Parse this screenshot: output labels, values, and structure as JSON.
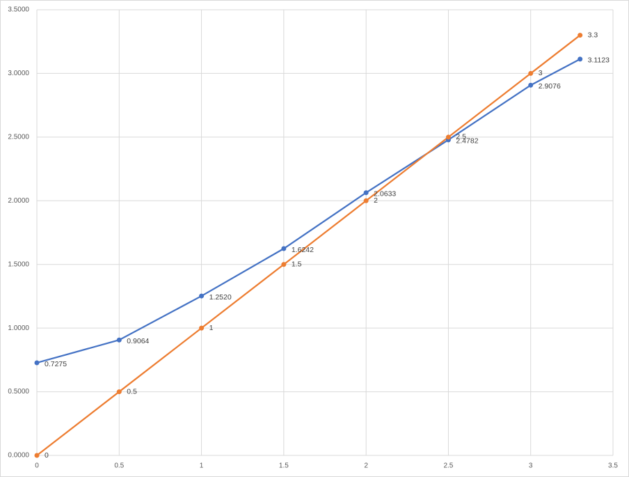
{
  "chart_data": {
    "type": "scatter-line",
    "x": [
      0,
      0.5,
      1,
      1.5,
      2,
      2.5,
      3,
      3.3
    ],
    "series": [
      {
        "color": "#4472c4",
        "values": [
          0.7275,
          0.9064,
          1.252,
          1.6242,
          2.0633,
          2.4782,
          2.9076,
          3.1123
        ],
        "value_labels": [
          "0.7275",
          "0.9064",
          "1.2520",
          "1.6242",
          "2.0633",
          "2.4782",
          "2.9076",
          "3.1123"
        ]
      },
      {
        "color": "#ed7d31",
        "values": [
          0,
          0.5,
          1,
          1.5,
          2,
          2.5,
          3,
          3.3
        ]
      }
    ],
    "xlim": [
      0,
      3.5
    ],
    "xticks": [
      0,
      0.5,
      1,
      1.5,
      2,
      2.5,
      3,
      3.5
    ],
    "ylim": [
      0,
      3.5
    ],
    "yticks": [
      {
        "value": 0,
        "label": "0.0000"
      },
      {
        "value": 0.5,
        "label": "0.5000"
      },
      {
        "value": 1,
        "label": "1.0000"
      },
      {
        "value": 1.5,
        "label": "1.5000"
      },
      {
        "value": 2,
        "label": "2.0000"
      },
      {
        "value": 2.5,
        "label": "2.5000"
      },
      {
        "value": 3,
        "label": "3.0000"
      },
      {
        "value": 3.5,
        "label": "3.5000"
      }
    ],
    "grid": true
  }
}
